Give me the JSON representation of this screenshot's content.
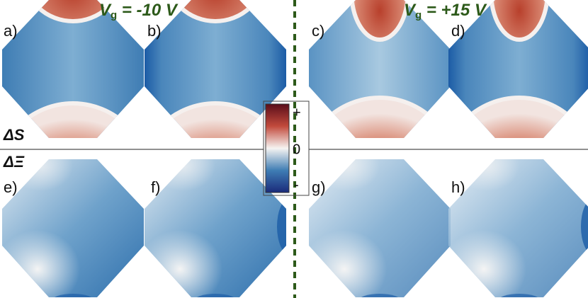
{
  "top_labels": [
    "a)",
    "b)",
    "c)",
    "d)"
  ],
  "bottom_labels": [
    "e)",
    "f)",
    "g)",
    "h)"
  ],
  "voltages": [
    {
      "symbol": "V",
      "subscript": "g",
      "value": " = -10 V"
    },
    {
      "symbol": "V",
      "subscript": "g",
      "value": " = +15 V"
    }
  ],
  "rows": [
    "ΔS",
    "ΔΞ"
  ],
  "colorbar": {
    "ticks": [
      "+",
      "0",
      "-"
    ]
  }
}
